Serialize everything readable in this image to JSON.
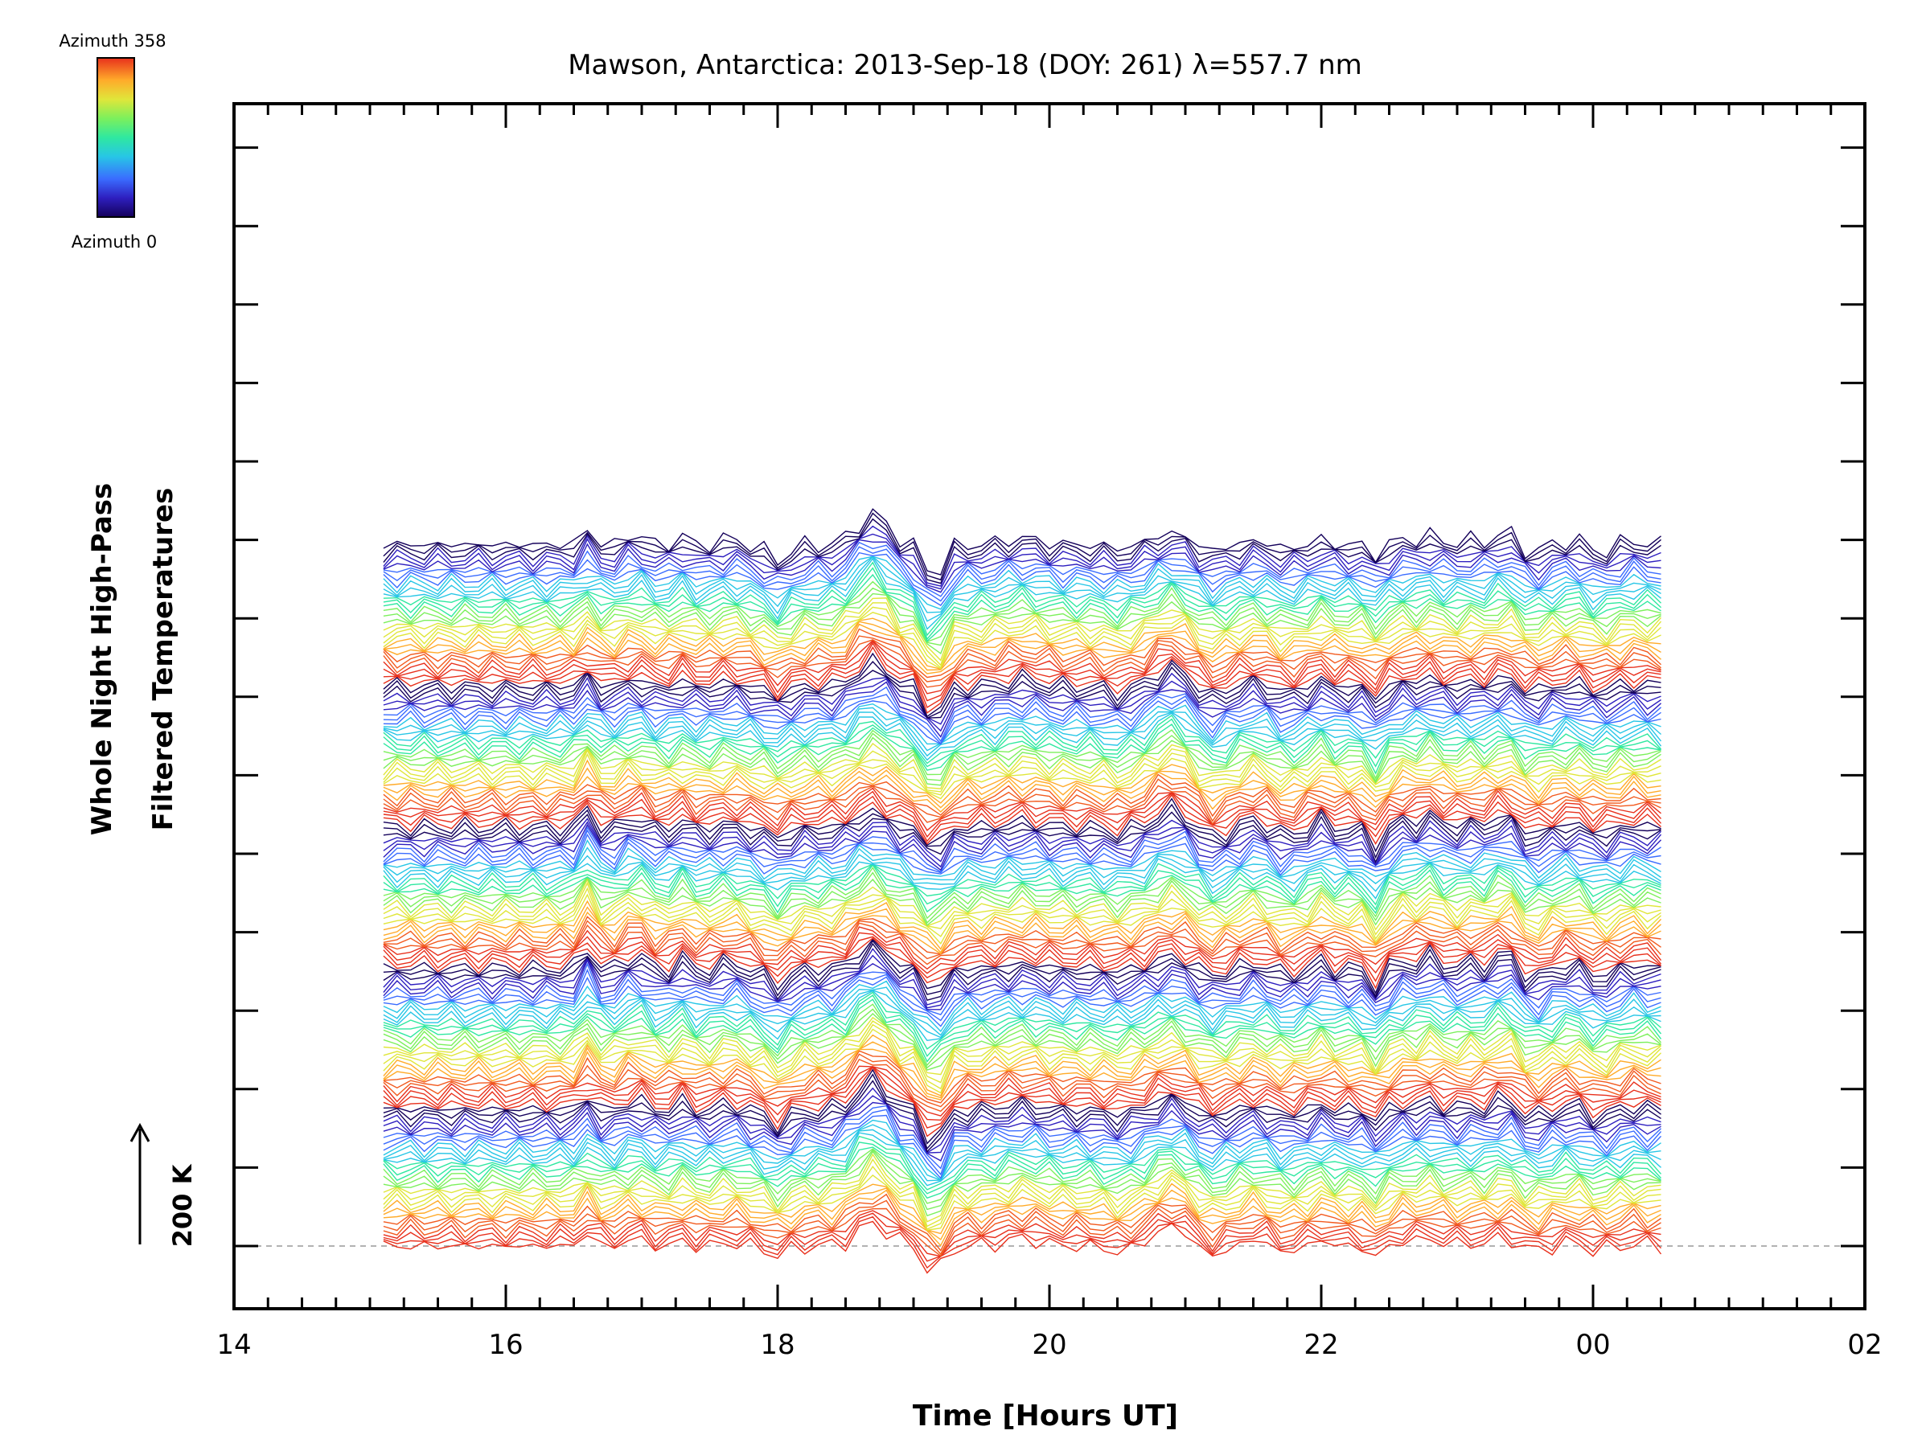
{
  "chart_data": {
    "type": "line",
    "title": "Mawson, Antarctica: 2013-Sep-18 (DOY: 261) λ=557.7 nm",
    "xlabel": "Time [Hours UT]",
    "ylabel_line1": "Whole Night High-Pass",
    "ylabel_line2": "Filtered Temperatures",
    "x_tick_labels": [
      "14",
      "16",
      "18",
      "20",
      "22",
      "00",
      "02"
    ],
    "xlim_hours": [
      14,
      26
    ],
    "data_x_range_hours": [
      15.1,
      24.5
    ],
    "scale_bar_label": "200 K",
    "colorbar": {
      "top_label": "Azimuth 358",
      "bottom_label": "Azimuth 0",
      "palette": [
        "#14005a",
        "#2e1fbf",
        "#3a6cff",
        "#27c6e6",
        "#2fe8a0",
        "#7cf05c",
        "#e0e63a",
        "#ffab2a",
        "#f25a1e",
        "#e8301c"
      ]
    },
    "series_count": 165,
    "azimuth_range_deg": [
      0,
      358
    ],
    "grid": false,
    "baseline": "dashed"
  }
}
